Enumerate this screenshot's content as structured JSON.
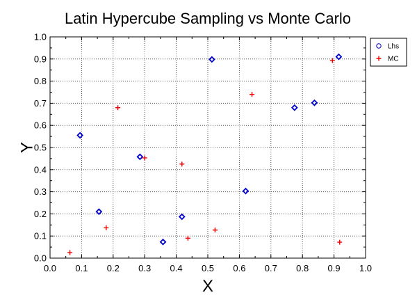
{
  "chart_data": {
    "type": "scatter",
    "title": "Latin Hypercube Sampling vs Monte Carlo",
    "xlabel": "X",
    "ylabel": "Y",
    "xlim": [
      0.0,
      1.0
    ],
    "ylim": [
      0.0,
      1.0
    ],
    "xticks": [
      "0.0",
      "0.1",
      "0.2",
      "0.3",
      "0.4",
      "0.5",
      "0.6",
      "0.7",
      "0.8",
      "0.9",
      "1.0"
    ],
    "yticks": [
      "0.0",
      "0.1",
      "0.2",
      "0.3",
      "0.4",
      "0.5",
      "0.6",
      "0.7",
      "0.8",
      "0.9",
      "1.0"
    ],
    "grid": true,
    "legend_position": "top-right",
    "series": [
      {
        "name": "Lhs",
        "marker": "diamond",
        "color": "#0000cc",
        "points": [
          [
            0.095,
            0.555
          ],
          [
            0.155,
            0.21
          ],
          [
            0.285,
            0.458
          ],
          [
            0.358,
            0.073
          ],
          [
            0.418,
            0.187
          ],
          [
            0.513,
            0.898
          ],
          [
            0.62,
            0.303
          ],
          [
            0.775,
            0.68
          ],
          [
            0.838,
            0.702
          ],
          [
            0.915,
            0.91
          ]
        ]
      },
      {
        "name": "MC",
        "marker": "plus",
        "color": "#ee0000",
        "points": [
          [
            0.063,
            0.025
          ],
          [
            0.178,
            0.137
          ],
          [
            0.215,
            0.68
          ],
          [
            0.3,
            0.453
          ],
          [
            0.418,
            0.425
          ],
          [
            0.437,
            0.09
          ],
          [
            0.523,
            0.127
          ],
          [
            0.64,
            0.74
          ],
          [
            0.895,
            0.893
          ],
          [
            0.918,
            0.072
          ]
        ]
      }
    ]
  }
}
